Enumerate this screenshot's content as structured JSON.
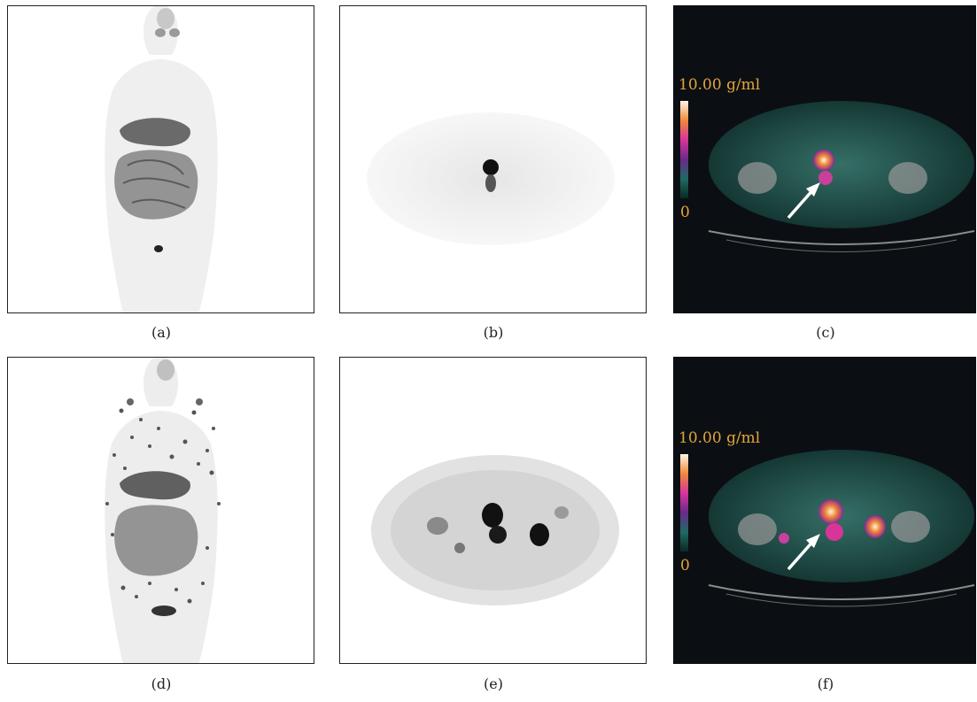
{
  "colors": {
    "scale_label": "#e6a437",
    "panel_frame": "#222222",
    "fusion_background": "#0b0f14"
  },
  "panels": [
    {
      "caption": "(a)",
      "kind": "mip-whole-body",
      "stage": "baseline"
    },
    {
      "caption": "(b)",
      "kind": "axial-pet",
      "stage": "baseline"
    },
    {
      "caption": "(c)",
      "kind": "axial-pet-ct-fusion",
      "stage": "baseline"
    },
    {
      "caption": "(d)",
      "kind": "mip-whole-body",
      "stage": "follow-up"
    },
    {
      "caption": "(e)",
      "kind": "axial-pet",
      "stage": "follow-up"
    },
    {
      "caption": "(f)",
      "kind": "axial-pet-ct-fusion",
      "stage": "follow-up"
    }
  ],
  "scale": {
    "max_label": "10.00 g/ml",
    "min_label": "0"
  }
}
